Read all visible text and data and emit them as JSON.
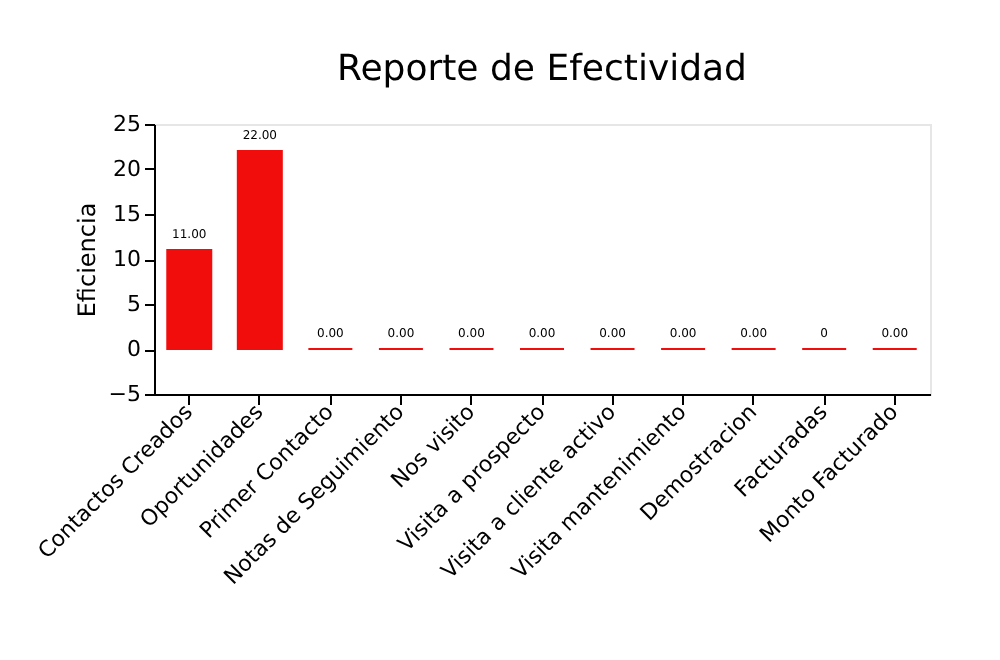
{
  "chart_data": {
    "type": "bar",
    "title": "Reporte de Efectividad",
    "ylabel": "Eficiencia",
    "categories": [
      "Contactos Creados",
      "Oportunidades",
      "Primer Contacto",
      "Notas de Seguimiento",
      "Nos visito",
      "Visita a prospecto",
      "Visita a cliente activo",
      "Visita mantenimiento",
      "Demostracion",
      "Facturadas",
      "Monto Facturado"
    ],
    "values": [
      11,
      22,
      0,
      0,
      0,
      0,
      0,
      0,
      0,
      0,
      0
    ],
    "value_labels": [
      "11.00",
      "22.00",
      "0.00",
      "0.00",
      "0.00",
      "0.00",
      "0.00",
      "0.00",
      "0.00",
      "0",
      "0.00"
    ],
    "color": "#f20d0d",
    "ylim": [
      -5,
      25
    ],
    "yticks": [
      -5,
      0,
      5,
      10,
      15,
      20,
      25
    ],
    "grid": false
  }
}
